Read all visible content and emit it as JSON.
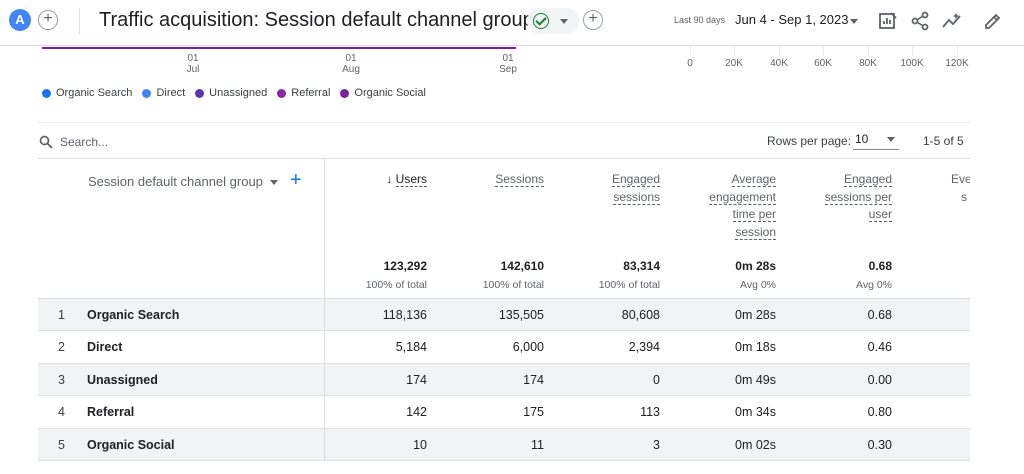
{
  "header": {
    "avatar_letter": "A",
    "title": "Traffic acquisition: Session default channel group",
    "date_label": "Last 90 days",
    "date_range": "Jun 4 - Sep 1, 2023"
  },
  "chart": {
    "x_ticks": [
      {
        "day": "01",
        "month": "Jul"
      },
      {
        "day": "01",
        "month": "Aug"
      },
      {
        "day": "01",
        "month": "Sep"
      }
    ],
    "bar_axis_ticks": [
      "0",
      "20K",
      "40K",
      "60K",
      "80K",
      "100K",
      "120K"
    ]
  },
  "legend": [
    {
      "label": "Organic Search",
      "color": "#1a73e8"
    },
    {
      "label": "Direct",
      "color": "#4285f4"
    },
    {
      "label": "Unassigned",
      "color": "#5e35b1"
    },
    {
      "label": "Referral",
      "color": "#8e24aa"
    },
    {
      "label": "Organic Social",
      "color": "#7b1fa2"
    }
  ],
  "toolbar": {
    "search_placeholder": "Search...",
    "rows_per_page_label": "Rows per page:",
    "rows_per_page_value": "10",
    "pagination": "1-5 of 5"
  },
  "table": {
    "dimension_header": "Session default channel group",
    "columns": [
      {
        "label_lines": [
          "Users"
        ],
        "total": "123,292",
        "total_sub": "100% of total"
      },
      {
        "label_lines": [
          "Sessions"
        ],
        "total": "142,610",
        "total_sub": "100% of total"
      },
      {
        "label_lines": [
          "Engaged",
          "sessions"
        ],
        "total": "83,314",
        "total_sub": "100% of total"
      },
      {
        "label_lines": [
          "Average",
          "engagement",
          "time per",
          "session"
        ],
        "total": "0m 28s",
        "total_sub": "Avg 0%"
      },
      {
        "label_lines": [
          "Engaged",
          "sessions per",
          "user"
        ],
        "total": "0.68",
        "total_sub": "Avg 0%"
      },
      {
        "label_lines": [
          "Eve",
          "s"
        ]
      }
    ],
    "rows": [
      {
        "index": "1",
        "name": "Organic Search",
        "values": [
          "118,136",
          "135,505",
          "80,608",
          "0m 28s",
          "0.68"
        ]
      },
      {
        "index": "2",
        "name": "Direct",
        "values": [
          "5,184",
          "6,000",
          "2,394",
          "0m 18s",
          "0.46"
        ]
      },
      {
        "index": "3",
        "name": "Unassigned",
        "values": [
          "174",
          "174",
          "0",
          "0m 49s",
          "0.00"
        ]
      },
      {
        "index": "4",
        "name": "Referral",
        "values": [
          "142",
          "175",
          "113",
          "0m 34s",
          "0.80"
        ]
      },
      {
        "index": "5",
        "name": "Organic Social",
        "values": [
          "10",
          "11",
          "3",
          "0m 02s",
          "0.30"
        ]
      }
    ]
  }
}
